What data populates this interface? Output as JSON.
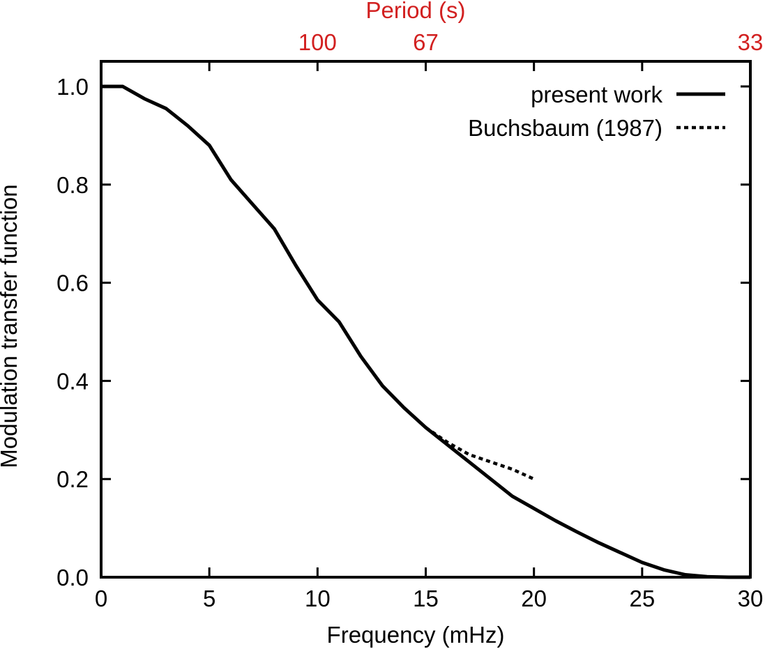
{
  "chart_data": {
    "type": "line",
    "xlabel": "Frequency (mHz)",
    "ylabel": "Modulation transfer function",
    "top_axis_label": "Period  (s)",
    "xlim": [
      0,
      30
    ],
    "ylim": [
      0,
      1.0
    ],
    "x_ticks": [
      0,
      5,
      10,
      15,
      20,
      25,
      30
    ],
    "x_tick_labels": [
      "0",
      "5",
      "10",
      "15",
      "20",
      "25",
      "30"
    ],
    "y_ticks": [
      0.0,
      0.2,
      0.4,
      0.6,
      0.8,
      1.0
    ],
    "y_tick_labels": [
      "0.0",
      "0.2",
      "0.4",
      "0.6",
      "0.8",
      "1.0"
    ],
    "top_ticks": [
      {
        "x": 10,
        "label": "100"
      },
      {
        "x": 15,
        "label": "67"
      },
      {
        "x": 30,
        "label": "33"
      }
    ],
    "legend_position": "top-right",
    "grid": false,
    "series": [
      {
        "name": "present work",
        "style": "solid",
        "color": "#000000",
        "x": [
          0,
          1,
          2,
          3,
          4,
          5,
          6,
          7,
          8,
          9,
          10,
          11,
          12,
          13,
          14,
          15,
          16,
          17,
          18,
          19,
          20,
          21,
          22,
          23,
          24,
          25,
          26,
          27,
          28,
          29,
          30
        ],
        "y": [
          1.0,
          1.0,
          0.975,
          0.955,
          0.92,
          0.88,
          0.81,
          0.76,
          0.71,
          0.635,
          0.565,
          0.52,
          0.45,
          0.39,
          0.345,
          0.305,
          0.27,
          0.235,
          0.2,
          0.165,
          0.14,
          0.115,
          0.092,
          0.07,
          0.05,
          0.03,
          0.015,
          0.005,
          0.001,
          0.0,
          0.0
        ]
      },
      {
        "name": "Buchsbaum (1987)",
        "style": "dotted",
        "color": "#000000",
        "x": [
          15,
          16,
          17,
          18,
          19,
          20
        ],
        "y": [
          0.305,
          0.275,
          0.25,
          0.235,
          0.22,
          0.2
        ]
      }
    ],
    "colors": {
      "axis": "#000000",
      "top_axis": "#d22020"
    }
  }
}
